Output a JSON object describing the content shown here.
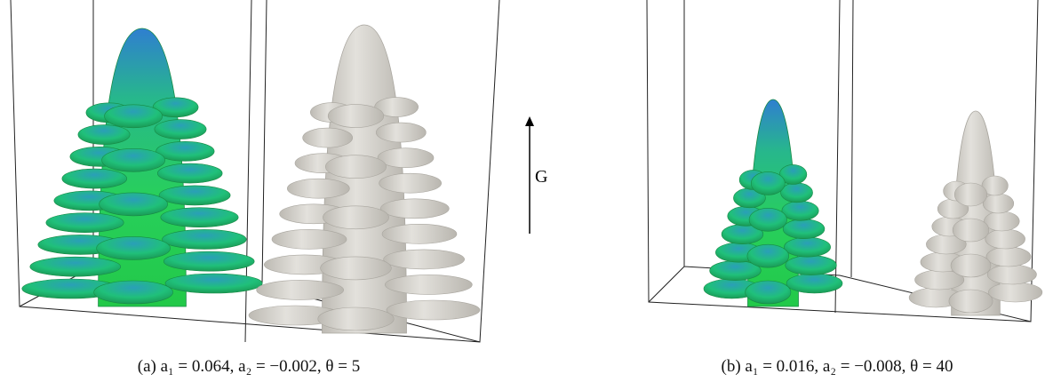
{
  "figure": {
    "arrow_label": "G",
    "panels": [
      {
        "caption": "(a) a₁ = 0.064,  a₂ = −0.002,  θ = 5"
      },
      {
        "caption": "(b) a₁ = 0.016,  a₂ = −0.008,  θ = 40"
      }
    ]
  }
}
